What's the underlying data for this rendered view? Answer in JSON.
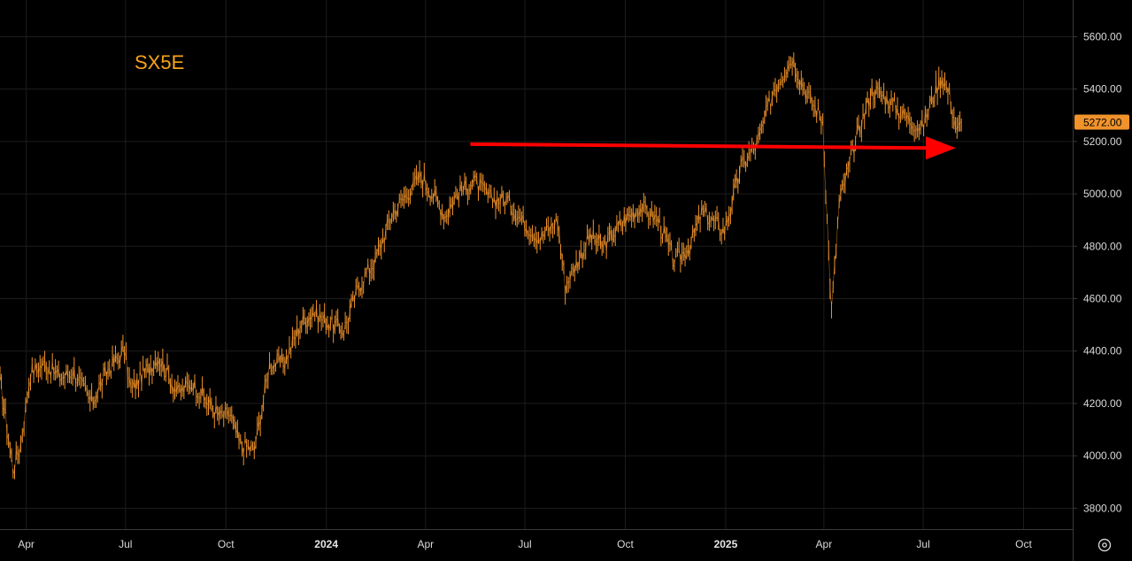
{
  "colors": {
    "background": "#000000",
    "grid": "#1c1c1c",
    "axis_line": "#3a3a3a",
    "price": "#f0932b",
    "title": "#f7a21b",
    "arrow": "#ff0000",
    "tick_text": "#d9d9d9"
  },
  "icons": {
    "settings": "gear-icon"
  },
  "chart_data": {
    "type": "line",
    "title": "SX5E",
    "xlabel": "",
    "ylabel": "",
    "ylim": [
      3720,
      5740
    ],
    "x_range": [
      "2023-03-08",
      "2025-11-15"
    ],
    "y_ticks": [
      {
        "value": 3800,
        "label": "3800.00"
      },
      {
        "value": 4000,
        "label": "4000.00"
      },
      {
        "value": 4200,
        "label": "4200.00"
      },
      {
        "value": 4400,
        "label": "4400.00"
      },
      {
        "value": 4600,
        "label": "4600.00"
      },
      {
        "value": 4800,
        "label": "4800.00"
      },
      {
        "value": 5000,
        "label": "5000.00"
      },
      {
        "value": 5200,
        "label": "5200.00"
      },
      {
        "value": 5400,
        "label": "5400.00"
      },
      {
        "value": 5600,
        "label": "5600.00"
      }
    ],
    "x_ticks": [
      {
        "date": "2023-04-01",
        "label": "Apr",
        "bold": false
      },
      {
        "date": "2023-07-01",
        "label": "Jul",
        "bold": false
      },
      {
        "date": "2023-10-01",
        "label": "Oct",
        "bold": false
      },
      {
        "date": "2024-01-01",
        "label": "2024",
        "bold": true
      },
      {
        "date": "2024-04-01",
        "label": "Apr",
        "bold": false
      },
      {
        "date": "2024-07-01",
        "label": "Jul",
        "bold": false
      },
      {
        "date": "2024-10-01",
        "label": "Oct",
        "bold": false
      },
      {
        "date": "2025-01-01",
        "label": "2025",
        "bold": true
      },
      {
        "date": "2025-04-01",
        "label": "Apr",
        "bold": false
      },
      {
        "date": "2025-07-01",
        "label": "Jul",
        "bold": false
      },
      {
        "date": "2025-10-01",
        "label": "Oct",
        "bold": false
      }
    ],
    "last_price": {
      "value": 5272,
      "label": "5272.00"
    },
    "grid": true,
    "legend": "none",
    "series": [
      {
        "x": [
          "2023-03-08",
          "2023-03-13",
          "2023-03-20",
          "2023-03-27",
          "2023-04-05",
          "2023-04-18",
          "2023-05-02",
          "2023-05-15",
          "2023-05-31",
          "2023-06-15",
          "2023-06-30",
          "2023-07-06",
          "2023-07-31",
          "2023-08-18",
          "2023-09-01",
          "2023-09-15",
          "2023-09-26",
          "2023-10-05",
          "2023-10-13",
          "2023-10-27",
          "2023-11-10",
          "2023-11-24",
          "2023-12-08",
          "2023-12-20",
          "2023-12-29",
          "2024-01-17",
          "2024-01-31",
          "2024-02-15",
          "2024-03-01",
          "2024-03-15",
          "2024-03-28",
          "2024-04-19",
          "2024-04-30",
          "2024-05-15",
          "2024-05-31",
          "2024-06-14",
          "2024-06-28",
          "2024-07-15",
          "2024-07-31",
          "2024-08-07",
          "2024-08-30",
          "2024-09-11",
          "2024-09-30",
          "2024-10-15",
          "2024-10-31",
          "2024-11-15",
          "2024-11-29",
          "2024-12-10",
          "2024-12-31",
          "2025-01-15",
          "2025-01-31",
          "2025-02-14",
          "2025-03-03",
          "2025-03-14",
          "2025-03-31",
          "2025-04-04",
          "2025-04-08",
          "2025-04-15",
          "2025-04-30",
          "2025-05-15",
          "2025-05-30",
          "2025-06-13",
          "2025-06-30",
          "2025-07-10",
          "2025-07-18",
          "2025-07-25",
          "2025-08-01",
          "2025-08-05"
        ],
        "values": [
          4280,
          4150,
          3950,
          4050,
          4320,
          4350,
          4300,
          4320,
          4200,
          4330,
          4400,
          4250,
          4380,
          4240,
          4280,
          4200,
          4150,
          4160,
          4050,
          4020,
          4350,
          4360,
          4500,
          4550,
          4520,
          4480,
          4650,
          4750,
          4920,
          5000,
          5070,
          4920,
          5000,
          5050,
          4980,
          4980,
          4900,
          4830,
          4900,
          4650,
          4840,
          4800,
          4900,
          4950,
          4900,
          4740,
          4800,
          4930,
          4860,
          5100,
          5200,
          5400,
          5520,
          5400,
          5280,
          4900,
          4550,
          4960,
          5200,
          5400,
          5360,
          5300,
          5250,
          5370,
          5450,
          5380,
          5230,
          5272
        ]
      }
    ],
    "annotations": [
      {
        "type": "arrow",
        "from": {
          "x": "2024-05-12",
          "y": 5190
        },
        "to": {
          "x": "2025-07-31",
          "y": 5175
        }
      }
    ]
  }
}
